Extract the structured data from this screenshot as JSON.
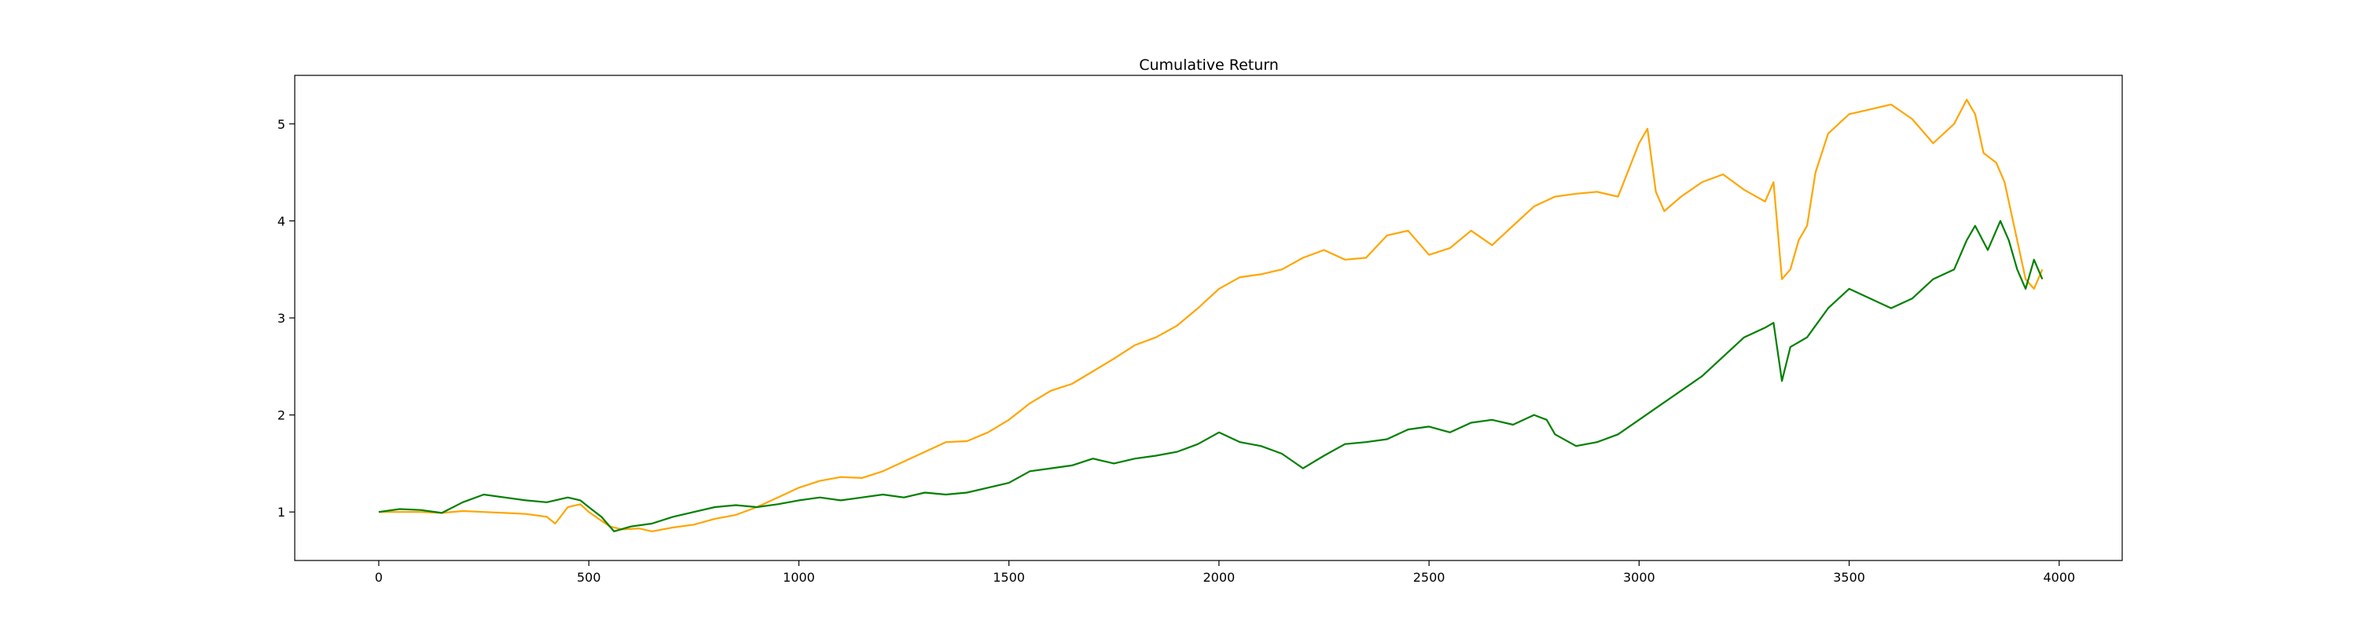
{
  "chart_data": {
    "type": "line",
    "title": "Cumulative Return",
    "xlabel": "",
    "ylabel": "",
    "xlim": [
      -200,
      4150
    ],
    "ylim": [
      0.5,
      5.5
    ],
    "x_ticks": [
      0,
      500,
      1000,
      1500,
      2000,
      2500,
      3000,
      3500,
      4000
    ],
    "y_ticks": [
      1,
      2,
      3,
      4,
      5
    ],
    "grid": false,
    "legend": "none",
    "series": [
      {
        "color": "#ffa500",
        "points": [
          [
            0,
            1.0
          ],
          [
            50,
            1.0
          ],
          [
            100,
            1.0
          ],
          [
            150,
            0.99
          ],
          [
            200,
            1.01
          ],
          [
            250,
            1.0
          ],
          [
            300,
            0.99
          ],
          [
            350,
            0.98
          ],
          [
            400,
            0.95
          ],
          [
            420,
            0.88
          ],
          [
            450,
            1.05
          ],
          [
            480,
            1.08
          ],
          [
            500,
            1.0
          ],
          [
            550,
            0.85
          ],
          [
            580,
            0.82
          ],
          [
            620,
            0.83
          ],
          [
            650,
            0.8
          ],
          [
            700,
            0.84
          ],
          [
            750,
            0.87
          ],
          [
            800,
            0.93
          ],
          [
            850,
            0.97
          ],
          [
            900,
            1.05
          ],
          [
            950,
            1.15
          ],
          [
            1000,
            1.25
          ],
          [
            1050,
            1.32
          ],
          [
            1100,
            1.36
          ],
          [
            1150,
            1.35
          ],
          [
            1200,
            1.42
          ],
          [
            1250,
            1.52
          ],
          [
            1300,
            1.62
          ],
          [
            1350,
            1.72
          ],
          [
            1400,
            1.73
          ],
          [
            1450,
            1.82
          ],
          [
            1500,
            1.95
          ],
          [
            1550,
            2.12
          ],
          [
            1600,
            2.25
          ],
          [
            1650,
            2.32
          ],
          [
            1700,
            2.45
          ],
          [
            1750,
            2.58
          ],
          [
            1800,
            2.72
          ],
          [
            1850,
            2.8
          ],
          [
            1900,
            2.92
          ],
          [
            1950,
            3.1
          ],
          [
            2000,
            3.3
          ],
          [
            2050,
            3.42
          ],
          [
            2100,
            3.45
          ],
          [
            2150,
            3.5
          ],
          [
            2200,
            3.62
          ],
          [
            2250,
            3.7
          ],
          [
            2300,
            3.6
          ],
          [
            2350,
            3.62
          ],
          [
            2400,
            3.85
          ],
          [
            2450,
            3.9
          ],
          [
            2500,
            3.65
          ],
          [
            2550,
            3.72
          ],
          [
            2600,
            3.9
          ],
          [
            2650,
            3.75
          ],
          [
            2700,
            3.95
          ],
          [
            2750,
            4.15
          ],
          [
            2800,
            4.25
          ],
          [
            2850,
            4.28
          ],
          [
            2900,
            4.3
          ],
          [
            2950,
            4.25
          ],
          [
            3000,
            4.8
          ],
          [
            3020,
            4.95
          ],
          [
            3040,
            4.3
          ],
          [
            3060,
            4.1
          ],
          [
            3100,
            4.25
          ],
          [
            3150,
            4.4
          ],
          [
            3200,
            4.48
          ],
          [
            3250,
            4.32
          ],
          [
            3300,
            4.2
          ],
          [
            3320,
            4.4
          ],
          [
            3340,
            3.4
          ],
          [
            3360,
            3.5
          ],
          [
            3380,
            3.8
          ],
          [
            3400,
            3.95
          ],
          [
            3420,
            4.5
          ],
          [
            3450,
            4.9
          ],
          [
            3500,
            5.1
          ],
          [
            3550,
            5.15
          ],
          [
            3600,
            5.2
          ],
          [
            3650,
            5.05
          ],
          [
            3700,
            4.8
          ],
          [
            3750,
            5.0
          ],
          [
            3780,
            5.25
          ],
          [
            3800,
            5.1
          ],
          [
            3820,
            4.7
          ],
          [
            3850,
            4.6
          ],
          [
            3870,
            4.4
          ],
          [
            3880,
            4.2
          ],
          [
            3900,
            3.8
          ],
          [
            3920,
            3.4
          ],
          [
            3940,
            3.3
          ],
          [
            3960,
            3.5
          ]
        ]
      },
      {
        "color": "#008000",
        "points": [
          [
            0,
            1.0
          ],
          [
            50,
            1.03
          ],
          [
            100,
            1.02
          ],
          [
            150,
            0.99
          ],
          [
            200,
            1.1
          ],
          [
            250,
            1.18
          ],
          [
            300,
            1.15
          ],
          [
            350,
            1.12
          ],
          [
            400,
            1.1
          ],
          [
            450,
            1.15
          ],
          [
            480,
            1.12
          ],
          [
            500,
            1.05
          ],
          [
            530,
            0.95
          ],
          [
            560,
            0.8
          ],
          [
            600,
            0.85
          ],
          [
            650,
            0.88
          ],
          [
            700,
            0.95
          ],
          [
            750,
            1.0
          ],
          [
            800,
            1.05
          ],
          [
            850,
            1.07
          ],
          [
            900,
            1.05
          ],
          [
            950,
            1.08
          ],
          [
            1000,
            1.12
          ],
          [
            1050,
            1.15
          ],
          [
            1100,
            1.12
          ],
          [
            1150,
            1.15
          ],
          [
            1200,
            1.18
          ],
          [
            1250,
            1.15
          ],
          [
            1300,
            1.2
          ],
          [
            1350,
            1.18
          ],
          [
            1400,
            1.2
          ],
          [
            1450,
            1.25
          ],
          [
            1500,
            1.3
          ],
          [
            1550,
            1.42
          ],
          [
            1600,
            1.45
          ],
          [
            1650,
            1.48
          ],
          [
            1700,
            1.55
          ],
          [
            1750,
            1.5
          ],
          [
            1800,
            1.55
          ],
          [
            1850,
            1.58
          ],
          [
            1900,
            1.62
          ],
          [
            1950,
            1.7
          ],
          [
            2000,
            1.82
          ],
          [
            2050,
            1.72
          ],
          [
            2100,
            1.68
          ],
          [
            2150,
            1.6
          ],
          [
            2200,
            1.45
          ],
          [
            2250,
            1.58
          ],
          [
            2300,
            1.7
          ],
          [
            2350,
            1.72
          ],
          [
            2400,
            1.75
          ],
          [
            2450,
            1.85
          ],
          [
            2500,
            1.88
          ],
          [
            2550,
            1.82
          ],
          [
            2600,
            1.92
          ],
          [
            2650,
            1.95
          ],
          [
            2700,
            1.9
          ],
          [
            2750,
            2.0
          ],
          [
            2780,
            1.95
          ],
          [
            2800,
            1.8
          ],
          [
            2850,
            1.68
          ],
          [
            2900,
            1.72
          ],
          [
            2950,
            1.8
          ],
          [
            3000,
            1.95
          ],
          [
            3050,
            2.1
          ],
          [
            3100,
            2.25
          ],
          [
            3150,
            2.4
          ],
          [
            3200,
            2.6
          ],
          [
            3250,
            2.8
          ],
          [
            3300,
            2.9
          ],
          [
            3320,
            2.95
          ],
          [
            3340,
            2.35
          ],
          [
            3360,
            2.7
          ],
          [
            3400,
            2.8
          ],
          [
            3450,
            3.1
          ],
          [
            3500,
            3.3
          ],
          [
            3550,
            3.2
          ],
          [
            3600,
            3.1
          ],
          [
            3650,
            3.2
          ],
          [
            3700,
            3.4
          ],
          [
            3750,
            3.5
          ],
          [
            3780,
            3.8
          ],
          [
            3800,
            3.95
          ],
          [
            3830,
            3.7
          ],
          [
            3860,
            4.0
          ],
          [
            3880,
            3.8
          ],
          [
            3900,
            3.5
          ],
          [
            3920,
            3.3
          ],
          [
            3940,
            3.6
          ],
          [
            3960,
            3.4
          ]
        ]
      }
    ]
  }
}
